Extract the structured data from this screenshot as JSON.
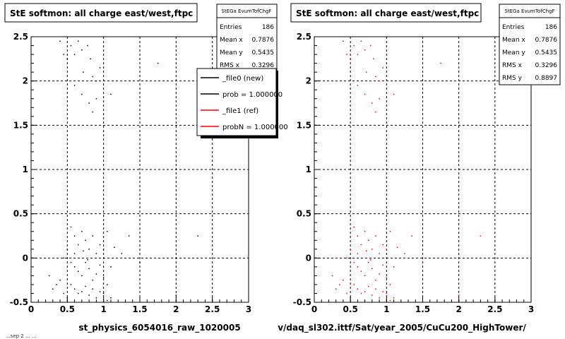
{
  "colors": {
    "background": "#ffffff",
    "frame": "#000000",
    "grid": "#000000",
    "left_points": "#000000",
    "right_points": "#ff0000",
    "legend_red": "#ff0000"
  },
  "footer": {
    "left_text": "...sep 2 ... ...",
    "left_xlabel": "st_physics_6054016_raw_1020005",
    "right_xlabel": "v/daq_sl302.ittf/Sat/year_2005/CuCu200_HighTower/"
  },
  "panels": [
    {
      "id": "left",
      "title": "StE softmon: all charge east/west,ftpc",
      "stats": {
        "header": "StEGa EvumTofChgF",
        "rows": [
          {
            "label": "Entries",
            "value": "186"
          },
          {
            "label": "Mean x",
            "value": "0.7876"
          },
          {
            "label": "Mean y",
            "value": "0.5435"
          },
          {
            "label": "RMS x",
            "value": "0.3296"
          }
        ]
      },
      "legend": {
        "entries": [
          {
            "label": "_file0 (new)",
            "color": "#000000"
          },
          {
            "label": "prob = 1.000000",
            "color": "#000000"
          },
          {
            "label": "_file1 (ref)",
            "color": "#ff0000"
          },
          {
            "label": "probN = 1.000000",
            "color": "#ff0000"
          }
        ]
      }
    },
    {
      "id": "right",
      "title": "StE softmon: all charge east/west,ftpc",
      "stats": {
        "header": "StEGa EvumTofChgF",
        "rows": [
          {
            "label": "Entries",
            "value": "186"
          },
          {
            "label": "Mean x",
            "value": "0.7876"
          },
          {
            "label": "Mean y",
            "value": "0.5435"
          },
          {
            "label": "RMS x",
            "value": "0.3296"
          },
          {
            "label": "RMS y",
            "value": "0.8897"
          }
        ]
      }
    }
  ],
  "chart_data": [
    {
      "type": "scatter",
      "title": "StE softmon: all charge east/west,ftpc",
      "xlabel": "st_physics_6054016_raw_1020005",
      "ylabel": "",
      "xlim": [
        0,
        3
      ],
      "ylim": [
        -0.5,
        2.5
      ],
      "x_ticks": [
        "0",
        "0.5",
        "1",
        "1.5",
        "2",
        "2.5",
        "3"
      ],
      "y_ticks": [
        "-0.5",
        "0",
        "0.5",
        "1",
        "1.5",
        "2",
        "2.5"
      ],
      "grid": true,
      "legend_placement": "top-right",
      "series": [
        {
          "name": "_file0 (new)",
          "color": "#000000",
          "points": [
            [
              0.4,
              2.45
            ],
            [
              0.45,
              2.3
            ],
            [
              0.5,
              2.25
            ],
            [
              0.55,
              2.4
            ],
            [
              0.6,
              2.3
            ],
            [
              0.65,
              2.45
            ],
            [
              0.7,
              2.35
            ],
            [
              0.72,
              2.1
            ],
            [
              0.78,
              2.4
            ],
            [
              0.82,
              2.25
            ],
            [
              0.85,
              2.05
            ],
            [
              0.9,
              2.0
            ],
            [
              0.95,
              2.15
            ],
            [
              0.6,
              1.95
            ],
            [
              0.7,
              1.85
            ],
            [
              0.8,
              1.75
            ],
            [
              0.85,
              1.65
            ],
            [
              0.9,
              1.8
            ],
            [
              1.1,
              1.85
            ],
            [
              1.75,
              2.2
            ],
            [
              0.55,
              0.35
            ],
            [
              0.6,
              0.25
            ],
            [
              0.65,
              0.15
            ],
            [
              0.7,
              0.3
            ],
            [
              0.75,
              0.2
            ],
            [
              0.8,
              0.1
            ],
            [
              0.85,
              0.25
            ],
            [
              0.9,
              0.05
            ],
            [
              0.95,
              0.15
            ],
            [
              1.0,
              0.1
            ],
            [
              1.05,
              0.3
            ],
            [
              1.15,
              0.12
            ],
            [
              1.25,
              0.05
            ],
            [
              1.35,
              0.25
            ],
            [
              0.5,
              0.1
            ],
            [
              0.45,
              0.0
            ],
            [
              0.55,
              -0.05
            ],
            [
              0.6,
              -0.1
            ],
            [
              0.65,
              -0.15
            ],
            [
              0.7,
              -0.2
            ],
            [
              0.75,
              -0.05
            ],
            [
              0.8,
              -0.12
            ],
            [
              0.85,
              -0.25
            ],
            [
              0.9,
              -0.18
            ],
            [
              0.95,
              -0.08
            ],
            [
              1.0,
              -0.22
            ],
            [
              1.05,
              -0.3
            ],
            [
              1.1,
              -0.1
            ],
            [
              0.55,
              -0.3
            ],
            [
              0.6,
              -0.35
            ],
            [
              0.65,
              -0.4
            ],
            [
              0.7,
              -0.38
            ],
            [
              0.75,
              -0.32
            ],
            [
              0.8,
              -0.42
            ],
            [
              0.85,
              -0.35
            ],
            [
              0.9,
              -0.45
            ],
            [
              0.95,
              -0.38
            ],
            [
              1.0,
              -0.4
            ],
            [
              1.05,
              -0.48
            ],
            [
              1.1,
              -0.45
            ],
            [
              0.4,
              -0.25
            ],
            [
              0.35,
              -0.3
            ],
            [
              0.3,
              -0.35
            ],
            [
              0.25,
              -0.2
            ],
            [
              0.5,
              -0.45
            ],
            [
              0.45,
              -0.4
            ],
            [
              1.5,
              -0.05
            ],
            [
              2.0,
              -0.42
            ],
            [
              2.3,
              0.25
            ],
            [
              0.6,
              0.05
            ],
            [
              0.72,
              0.08
            ],
            [
              0.78,
              -0.02
            ]
          ]
        }
      ]
    },
    {
      "type": "scatter",
      "title": "StE softmon: all charge east/west,ftpc",
      "xlabel": "v/daq_sl302.ittf/Sat/year_2005/CuCu200_HighTower/",
      "ylabel": "",
      "xlim": [
        0,
        3
      ],
      "ylim": [
        -0.5,
        2.5
      ],
      "x_ticks": [
        "0",
        "0.5",
        "1",
        "1.5",
        "2",
        "2.5",
        "3"
      ],
      "y_ticks": [
        "-0.5",
        "0",
        "0.5",
        "1",
        "1.5",
        "2",
        "2.5"
      ],
      "grid": true,
      "series": [
        {
          "name": "_file1 (ref)",
          "color": "#ff0000",
          "points": [
            [
              0.4,
              2.45
            ],
            [
              0.45,
              2.3
            ],
            [
              0.5,
              2.25
            ],
            [
              0.55,
              2.4
            ],
            [
              0.6,
              2.3
            ],
            [
              0.65,
              2.45
            ],
            [
              0.7,
              2.35
            ],
            [
              0.72,
              2.1
            ],
            [
              0.78,
              2.4
            ],
            [
              0.82,
              2.25
            ],
            [
              0.85,
              2.05
            ],
            [
              0.9,
              2.0
            ],
            [
              0.95,
              2.15
            ],
            [
              0.6,
              1.95
            ],
            [
              0.7,
              1.85
            ],
            [
              0.8,
              1.75
            ],
            [
              0.85,
              1.65
            ],
            [
              0.9,
              1.8
            ],
            [
              1.1,
              1.85
            ],
            [
              1.75,
              2.2
            ],
            [
              0.55,
              0.35
            ],
            [
              0.6,
              0.25
            ],
            [
              0.65,
              0.15
            ],
            [
              0.7,
              0.3
            ],
            [
              0.75,
              0.2
            ],
            [
              0.8,
              0.1
            ],
            [
              0.85,
              0.25
            ],
            [
              0.9,
              0.05
            ],
            [
              0.95,
              0.15
            ],
            [
              1.0,
              0.1
            ],
            [
              1.05,
              0.3
            ],
            [
              1.15,
              0.12
            ],
            [
              1.25,
              0.05
            ],
            [
              1.35,
              0.25
            ],
            [
              0.5,
              0.1
            ],
            [
              0.45,
              0.0
            ],
            [
              0.55,
              -0.05
            ],
            [
              0.6,
              -0.1
            ],
            [
              0.65,
              -0.15
            ],
            [
              0.7,
              -0.2
            ],
            [
              0.75,
              -0.05
            ],
            [
              0.8,
              -0.12
            ],
            [
              0.85,
              -0.25
            ],
            [
              0.9,
              -0.18
            ],
            [
              0.95,
              -0.08
            ],
            [
              1.0,
              -0.22
            ],
            [
              1.05,
              -0.3
            ],
            [
              1.1,
              -0.1
            ],
            [
              0.55,
              -0.3
            ],
            [
              0.6,
              -0.35
            ],
            [
              0.65,
              -0.4
            ],
            [
              0.7,
              -0.38
            ],
            [
              0.75,
              -0.32
            ],
            [
              0.8,
              -0.42
            ],
            [
              0.85,
              -0.35
            ],
            [
              0.9,
              -0.45
            ],
            [
              0.95,
              -0.38
            ],
            [
              1.0,
              -0.4
            ],
            [
              1.05,
              -0.48
            ],
            [
              1.1,
              -0.45
            ],
            [
              0.4,
              -0.25
            ],
            [
              0.35,
              -0.3
            ],
            [
              0.3,
              -0.35
            ],
            [
              0.25,
              -0.2
            ],
            [
              0.5,
              -0.45
            ],
            [
              0.45,
              -0.4
            ],
            [
              1.5,
              -0.05
            ],
            [
              2.0,
              -0.42
            ],
            [
              2.3,
              0.25
            ],
            [
              0.6,
              0.05
            ],
            [
              0.72,
              0.08
            ],
            [
              0.78,
              -0.02
            ]
          ]
        }
      ]
    }
  ]
}
